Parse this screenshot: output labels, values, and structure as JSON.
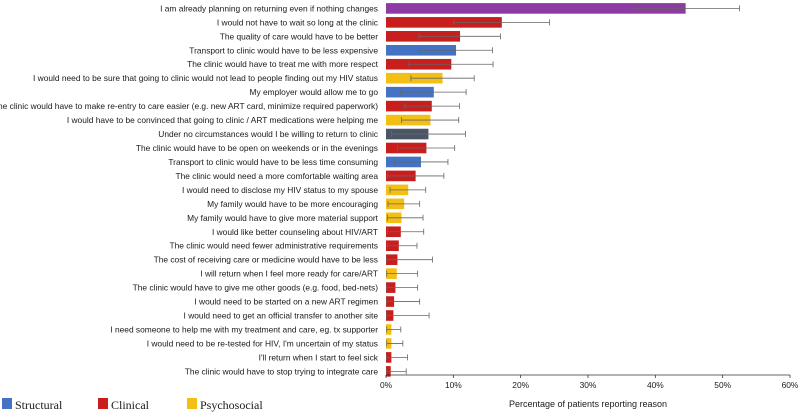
{
  "chart_data": {
    "type": "bar",
    "orientation": "horizontal",
    "xlabel": "Percentage of patients reporting reason",
    "ylabel": "",
    "xlim": [
      0,
      60
    ],
    "xticks": [
      0,
      10,
      20,
      30,
      40,
      50,
      60
    ],
    "xtick_labels": [
      "0%",
      "10%",
      "20%",
      "30%",
      "40%",
      "50%",
      "60%"
    ],
    "grid": false,
    "legend_position": "bottom-left",
    "colors": {
      "Structural": "#4472c4",
      "Clinical": "#c81e1e",
      "Psychosocial": "#f4bf14",
      "Other": "#8e3aa4",
      "Neutral": "#4a5565",
      "error_bar": "#666666",
      "axis": "#333333"
    },
    "legend": [
      {
        "label": "Structural",
        "color_key": "Structural"
      },
      {
        "label": "Clinical",
        "color_key": "Clinical"
      },
      {
        "label": "Psychosocial",
        "color_key": "Psychosocial"
      }
    ],
    "bars": [
      {
        "label": "I am already planning on returning even if nothing changes",
        "value": 44.5,
        "err_low": 36.5,
        "err_high": 52.5,
        "category": "Other"
      },
      {
        "label": "I would not have to wait so long at the clinic",
        "value": 17.2,
        "err_low": 10.0,
        "err_high": 24.3,
        "category": "Clinical"
      },
      {
        "label": "The quality of care would have to be better",
        "value": 11.0,
        "err_low": 4.9,
        "err_high": 17.0,
        "category": "Clinical"
      },
      {
        "label": "Transport to clinic would have to be less expensive",
        "value": 10.4,
        "err_low": 5.0,
        "err_high": 15.8,
        "category": "Structural"
      },
      {
        "label": "The clinic would have to treat me with more respect",
        "value": 9.7,
        "err_low": 3.4,
        "err_high": 15.9,
        "category": "Clinical"
      },
      {
        "label": "I would need to be sure that going to clinic would not lead to people finding out my HIV status",
        "value": 8.4,
        "err_low": 3.7,
        "err_high": 13.1,
        "category": "Psychosocial"
      },
      {
        "label": "My employer would allow me to go",
        "value": 7.1,
        "err_low": 2.2,
        "err_high": 11.9,
        "category": "Structural"
      },
      {
        "label": "The clinic would have to make re-entry to care easier (e.g. new ART card, minimize required paperwork)",
        "value": 6.8,
        "err_low": 2.8,
        "err_high": 10.9,
        "category": "Clinical"
      },
      {
        "label": "I would have to be convinced that going to clinic / ART medications were helping me",
        "value": 6.6,
        "err_low": 2.3,
        "err_high": 10.8,
        "category": "Psychosocial"
      },
      {
        "label": "Under no circumstances would I be willing to return to clinic",
        "value": 6.3,
        "err_low": 0.8,
        "err_high": 11.8,
        "category": "Neutral"
      },
      {
        "label": "The clinic would have to be open on weekends or in the evenings",
        "value": 6.0,
        "err_low": 1.7,
        "err_high": 10.2,
        "category": "Clinical"
      },
      {
        "label": "Transport to clinic would have to be less time consuming",
        "value": 5.2,
        "err_low": 1.3,
        "err_high": 9.2,
        "category": "Structural"
      },
      {
        "label": "The clinic would need a more comfortable waiting area",
        "value": 4.4,
        "err_low": 0.2,
        "err_high": 8.6,
        "category": "Clinical"
      },
      {
        "label": "I would need to disclose my HIV status to my spouse",
        "value": 3.3,
        "err_low": 0.6,
        "err_high": 5.9,
        "category": "Psychosocial"
      },
      {
        "label": "My family would have to be more encouraging",
        "value": 2.7,
        "err_low": 0.3,
        "err_high": 5.0,
        "category": "Psychosocial"
      },
      {
        "label": "My family would have to give more material support",
        "value": 2.3,
        "err_low": 0.2,
        "err_high": 5.5,
        "category": "Psychosocial"
      },
      {
        "label": "I would like better counseling about HIV/ART",
        "value": 2.2,
        "err_low": 0.2,
        "err_high": 5.6,
        "category": "Clinical"
      },
      {
        "label": "The clinic would need fewer administrative requirements",
        "value": 1.9,
        "err_low": 0.2,
        "err_high": 4.6,
        "category": "Clinical"
      },
      {
        "label": "The cost of receiving care or medicine would have to be less",
        "value": 1.7,
        "err_low": 0.1,
        "err_high": 6.9,
        "category": "Clinical"
      },
      {
        "label": "I will return when I feel more ready for care/ART",
        "value": 1.6,
        "err_low": 0.1,
        "err_high": 4.7,
        "category": "Psychosocial"
      },
      {
        "label": "The clinic would have to give me other goods (e.g. food, bed-nets)",
        "value": 1.4,
        "err_low": 0.1,
        "err_high": 4.7,
        "category": "Clinical"
      },
      {
        "label": "I would need to be started on a new ART regimen",
        "value": 1.2,
        "err_low": 0.1,
        "err_high": 5.0,
        "category": "Clinical"
      },
      {
        "label": "I would need to get an official transfer to another site",
        "value": 1.1,
        "err_low": 0.1,
        "err_high": 6.4,
        "category": "Clinical"
      },
      {
        "label": "I need someone to help me with my treatment and care, eg. tx supporter",
        "value": 0.8,
        "err_low": 0.1,
        "err_high": 2.2,
        "category": "Psychosocial"
      },
      {
        "label": "I would need to be re-tested for HIV, I'm uncertain of my status",
        "value": 0.8,
        "err_low": 0.1,
        "err_high": 2.5,
        "category": "Psychosocial"
      },
      {
        "label": "I'll return when I start to feel sick",
        "value": 0.8,
        "err_low": 0.1,
        "err_high": 3.2,
        "category": "Clinical"
      },
      {
        "label": "The clinic would have to stop trying to integrate care",
        "value": 0.7,
        "err_low": 0.1,
        "err_high": 3.0,
        "category": "Clinical"
      }
    ]
  }
}
